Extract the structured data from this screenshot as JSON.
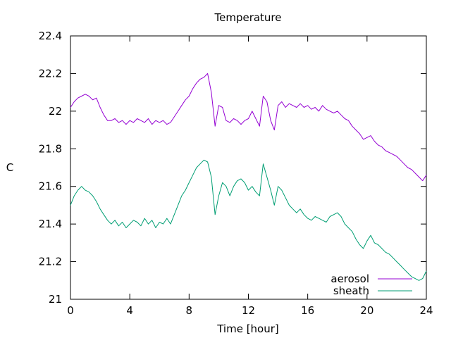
{
  "chart_data": {
    "type": "line",
    "title": "Temperature",
    "xlabel": "Time [hour]",
    "ylabel": "C",
    "xlim": [
      0,
      24
    ],
    "ylim": [
      21,
      22.4
    ],
    "xticks": [
      0,
      4,
      8,
      12,
      16,
      20,
      24
    ],
    "xtick_labels": [
      "0",
      "4",
      "8",
      "12",
      "16",
      "20",
      "24"
    ],
    "yticks": [
      21,
      21.2,
      21.4,
      21.6,
      21.8,
      22,
      22.2,
      22.4
    ],
    "ytick_labels": [
      "21",
      "21.2",
      "21.4",
      "21.6",
      "21.8",
      "22",
      "22.2",
      "22.4"
    ],
    "grid": false,
    "legend_position": "bottom-right",
    "colors": {
      "aerosol": "#9400d3",
      "sheath": "#009e73"
    },
    "series": [
      {
        "name": "aerosol",
        "x": [
          0,
          0.25,
          0.5,
          0.75,
          1,
          1.25,
          1.5,
          1.75,
          2,
          2.25,
          2.5,
          2.75,
          3,
          3.25,
          3.5,
          3.75,
          4,
          4.25,
          4.5,
          4.75,
          5,
          5.25,
          5.5,
          5.75,
          6,
          6.25,
          6.5,
          6.75,
          7,
          7.25,
          7.5,
          7.75,
          8,
          8.25,
          8.5,
          8.75,
          9,
          9.25,
          9.5,
          9.75,
          10,
          10.25,
          10.5,
          10.75,
          11,
          11.25,
          11.5,
          11.75,
          12,
          12.25,
          12.5,
          12.75,
          13,
          13.25,
          13.5,
          13.75,
          14,
          14.25,
          14.5,
          14.75,
          15,
          15.25,
          15.5,
          15.75,
          16,
          16.25,
          16.5,
          16.75,
          17,
          17.25,
          17.5,
          17.75,
          18,
          18.25,
          18.5,
          18.75,
          19,
          19.25,
          19.5,
          19.75,
          20,
          20.25,
          20.5,
          20.75,
          21,
          21.25,
          21.5,
          21.75,
          22,
          22.25,
          22.5,
          22.75,
          23,
          23.25,
          23.5,
          23.75,
          24
        ],
        "values": [
          22.02,
          22.05,
          22.07,
          22.08,
          22.09,
          22.08,
          22.06,
          22.07,
          22.02,
          21.98,
          21.95,
          21.95,
          21.96,
          21.94,
          21.95,
          21.93,
          21.95,
          21.94,
          21.96,
          21.95,
          21.94,
          21.96,
          21.93,
          21.95,
          21.94,
          21.95,
          21.93,
          21.94,
          21.97,
          22.0,
          22.03,
          22.06,
          22.08,
          22.12,
          22.15,
          22.17,
          22.18,
          22.2,
          22.1,
          21.92,
          22.03,
          22.02,
          21.95,
          21.94,
          21.96,
          21.95,
          21.93,
          21.95,
          21.96,
          22.0,
          21.96,
          21.92,
          22.08,
          22.05,
          21.95,
          21.9,
          22.03,
          22.05,
          22.02,
          22.04,
          22.03,
          22.02,
          22.04,
          22.02,
          22.03,
          22.01,
          22.02,
          22.0,
          22.03,
          22.01,
          22.0,
          21.99,
          22.0,
          21.98,
          21.96,
          21.95,
          21.92,
          21.9,
          21.88,
          21.85,
          21.86,
          21.87,
          21.84,
          21.82,
          21.81,
          21.79,
          21.78,
          21.77,
          21.76,
          21.74,
          21.72,
          21.7,
          21.69,
          21.67,
          21.65,
          21.63,
          21.66
        ]
      },
      {
        "name": "sheath",
        "x": [
          0,
          0.25,
          0.5,
          0.75,
          1,
          1.25,
          1.5,
          1.75,
          2,
          2.25,
          2.5,
          2.75,
          3,
          3.25,
          3.5,
          3.75,
          4,
          4.25,
          4.5,
          4.75,
          5,
          5.25,
          5.5,
          5.75,
          6,
          6.25,
          6.5,
          6.75,
          7,
          7.25,
          7.5,
          7.75,
          8,
          8.25,
          8.5,
          8.75,
          9,
          9.25,
          9.5,
          9.75,
          10,
          10.25,
          10.5,
          10.75,
          11,
          11.25,
          11.5,
          11.75,
          12,
          12.25,
          12.5,
          12.75,
          13,
          13.25,
          13.5,
          13.75,
          14,
          14.25,
          14.5,
          14.75,
          15,
          15.25,
          15.5,
          15.75,
          16,
          16.25,
          16.5,
          16.75,
          17,
          17.25,
          17.5,
          17.75,
          18,
          18.25,
          18.5,
          18.75,
          19,
          19.25,
          19.5,
          19.75,
          20,
          20.25,
          20.5,
          20.75,
          21,
          21.25,
          21.5,
          21.75,
          22,
          22.25,
          22.5,
          22.75,
          23,
          23.25,
          23.5,
          23.75,
          24
        ],
        "values": [
          21.5,
          21.55,
          21.58,
          21.6,
          21.58,
          21.57,
          21.55,
          21.52,
          21.48,
          21.45,
          21.42,
          21.4,
          21.42,
          21.39,
          21.41,
          21.38,
          21.4,
          21.42,
          21.41,
          21.39,
          21.43,
          21.4,
          21.42,
          21.38,
          21.41,
          21.4,
          21.43,
          21.4,
          21.45,
          21.5,
          21.55,
          21.58,
          21.62,
          21.66,
          21.7,
          21.72,
          21.74,
          21.73,
          21.65,
          21.45,
          21.55,
          21.62,
          21.6,
          21.55,
          21.6,
          21.63,
          21.64,
          21.62,
          21.58,
          21.6,
          21.57,
          21.55,
          21.72,
          21.65,
          21.58,
          21.5,
          21.6,
          21.58,
          21.54,
          21.5,
          21.48,
          21.46,
          21.48,
          21.45,
          21.43,
          21.42,
          21.44,
          21.43,
          21.42,
          21.41,
          21.44,
          21.45,
          21.46,
          21.44,
          21.4,
          21.38,
          21.36,
          21.32,
          21.29,
          21.27,
          21.31,
          21.34,
          21.3,
          21.29,
          21.27,
          21.25,
          21.24,
          21.22,
          21.2,
          21.18,
          21.16,
          21.14,
          21.12,
          21.11,
          21.1,
          21.11,
          21.15
        ]
      }
    ]
  }
}
